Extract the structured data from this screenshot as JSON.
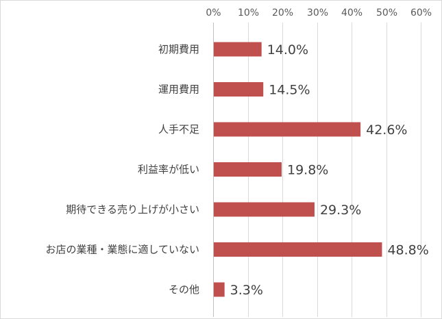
{
  "chart_data": {
    "type": "bar",
    "orientation": "horizontal",
    "categories": [
      "初期費用",
      "運用費用",
      "人手不足",
      "利益率が低い",
      "期待できる売り上げが小さい",
      "お店の業種・業態に適していない",
      "その他"
    ],
    "values": [
      14.0,
      14.5,
      42.6,
      19.8,
      29.3,
      48.8,
      3.3
    ],
    "data_labels": [
      "14.0%",
      "14.5%",
      "42.6%",
      "19.8%",
      "29.3%",
      "48.8%",
      "3.3%"
    ],
    "x_ticks": [
      "0%",
      "10%",
      "20%",
      "30%",
      "40%",
      "50%",
      "60%"
    ],
    "xlim": [
      0,
      60
    ],
    "x_axis_position": "top",
    "grid": true,
    "bar_color": "#c0504d",
    "title": "",
    "xlabel": "",
    "ylabel": ""
  }
}
